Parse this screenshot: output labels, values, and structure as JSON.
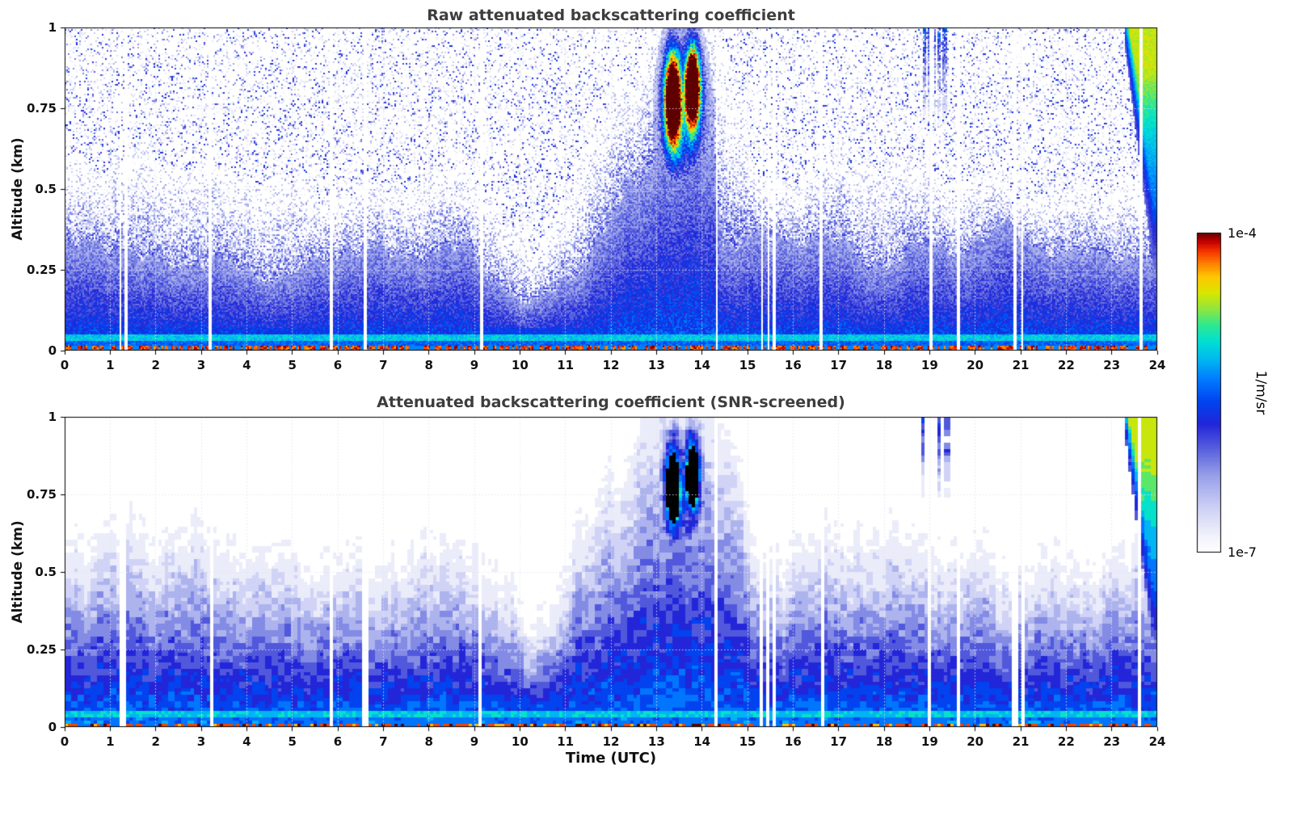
{
  "chart_data": [
    {
      "type": "heatmap",
      "title": "Raw attenuated backscattering coefficient",
      "xlabel": "",
      "ylabel": "Altitude (km)",
      "x_range": [
        0,
        24
      ],
      "y_range": [
        0,
        1
      ],
      "x_ticks": [
        0,
        1,
        2,
        3,
        4,
        5,
        6,
        7,
        8,
        9,
        10,
        11,
        12,
        13,
        14,
        15,
        16,
        17,
        18,
        19,
        20,
        21,
        22,
        23,
        24
      ],
      "x_tick_labels": [
        "0",
        "1",
        "2",
        "3",
        "4",
        "5",
        "6",
        "7",
        "8",
        "9",
        "10",
        "11",
        "12",
        "13",
        "14",
        "15",
        "16",
        "17",
        "18",
        "19",
        "20",
        "21",
        "22",
        "23",
        "24"
      ],
      "y_ticks": [
        0,
        0.25,
        0.5,
        0.75,
        1
      ],
      "y_tick_labels": [
        "0",
        "0.25",
        "0.5",
        "0.75",
        "1"
      ],
      "color_scale": "log",
      "value_min": "1e-7",
      "value_max": "1e-4",
      "units": "1/m/sr",
      "grid": "dotted",
      "features": {
        "boundary_layer": {
          "solid_top_km": 0.27,
          "haze_top_km": 0.53,
          "dip_time_utc": 10.2,
          "dip_top_km": 0.13,
          "collapse_time_utc": 14.25,
          "post_collapse_top_km": 0.31
        },
        "cloud_event": {
          "time_start_utc": 12.8,
          "time_end_utc": 14.3,
          "lobe1_utc": 13.35,
          "lobe2_utc": 13.8,
          "alt_center_km": 0.8,
          "alt_min_km": 0.55,
          "alt_max_km": 1.0,
          "peak_value": "1e-4"
        },
        "upper_feature": {
          "time_start_utc": 18.85,
          "time_end_utc": 19.4,
          "alt_min_km": 0.72,
          "alt_max_km": 1.0
        },
        "right_edge_feature": {
          "time_start_utc": 23.3,
          "time_end_utc": 24.0,
          "alt_min_km": 0.45,
          "alt_max_km": 1.0
        },
        "missing_profile_times_utc": [
          1.22,
          1.34,
          3.2,
          5.85,
          6.6,
          9.15,
          14.32,
          15.32,
          15.46,
          15.58,
          16.62,
          19.02,
          19.64,
          20.88,
          21.04,
          23.64
        ],
        "surface_bands": {
          "cyan_band_alt_km": 0.035,
          "red_surface_line_alt_km": 0.005
        }
      }
    },
    {
      "type": "heatmap",
      "title": "Attenuated backscattering coefficient (SNR-screened)",
      "xlabel": "Time (UTC)",
      "ylabel": "Altitude (km)",
      "x_range": [
        0,
        24
      ],
      "y_range": [
        0,
        1
      ],
      "x_ticks": [
        0,
        1,
        2,
        3,
        4,
        5,
        6,
        7,
        8,
        9,
        10,
        11,
        12,
        13,
        14,
        15,
        16,
        17,
        18,
        19,
        20,
        21,
        22,
        23,
        24
      ],
      "x_tick_labels": [
        "0",
        "1",
        "2",
        "3",
        "4",
        "5",
        "6",
        "7",
        "8",
        "9",
        "10",
        "11",
        "12",
        "13",
        "14",
        "15",
        "16",
        "17",
        "18",
        "19",
        "20",
        "21",
        "22",
        "23",
        "24"
      ],
      "y_ticks": [
        0,
        0.25,
        0.5,
        0.75,
        1
      ],
      "y_tick_labels": [
        "0",
        "0.25",
        "0.5",
        "0.75",
        "1"
      ],
      "color_scale": "log",
      "value_min": "1e-7",
      "value_max": "1e-4",
      "units": "1/m/sr",
      "grid": "dotted",
      "screened": true,
      "saturation_color": "#000000"
    }
  ],
  "colorbar": {
    "label": "1/m/sr",
    "top_label": "1e-4",
    "bottom_label": "1e-7",
    "stops": [
      [
        0.0,
        "#ffffff"
      ],
      [
        0.05,
        "#f2f2fb"
      ],
      [
        0.14,
        "#cdd0f4"
      ],
      [
        0.24,
        "#979fe9"
      ],
      [
        0.32,
        "#5a62dd"
      ],
      [
        0.4,
        "#2326d8"
      ],
      [
        0.47,
        "#0043f0"
      ],
      [
        0.54,
        "#007aff"
      ],
      [
        0.6,
        "#00b5f2"
      ],
      [
        0.66,
        "#00e0d2"
      ],
      [
        0.71,
        "#2ee890"
      ],
      [
        0.76,
        "#8fe63e"
      ],
      [
        0.81,
        "#d8e600"
      ],
      [
        0.86,
        "#ffc800"
      ],
      [
        0.9,
        "#ff8400"
      ],
      [
        0.94,
        "#f53600"
      ],
      [
        0.97,
        "#c40000"
      ],
      [
        1.0,
        "#5e0000"
      ]
    ]
  }
}
